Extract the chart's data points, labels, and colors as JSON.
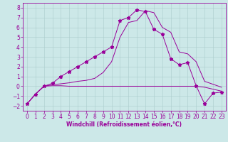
{
  "xlabel": "Windchill (Refroidissement éolien,°C)",
  "background_color": "#cce8e8",
  "line_color": "#990099",
  "grid_color": "#aacccc",
  "x_data": [
    0,
    1,
    2,
    3,
    4,
    5,
    6,
    7,
    8,
    9,
    10,
    11,
    12,
    13,
    14,
    15,
    16,
    17,
    18,
    19,
    20,
    21,
    22,
    23
  ],
  "star_y": [
    -1.8,
    -0.8,
    0.0,
    0.3,
    1.0,
    1.5,
    2.0,
    2.5,
    3.0,
    3.5,
    4.0,
    6.7,
    7.0,
    7.8,
    7.6,
    5.8,
    5.3,
    2.8,
    2.2,
    2.4,
    0.05,
    -1.8,
    -0.7,
    -0.6
  ],
  "smooth_y": [
    -1.8,
    -0.8,
    0.0,
    0.15,
    0.25,
    0.35,
    0.5,
    0.6,
    0.8,
    1.4,
    2.5,
    5.0,
    6.5,
    6.7,
    7.7,
    7.5,
    6.0,
    5.5,
    3.5,
    3.3,
    2.5,
    0.5,
    0.2,
    -0.1
  ],
  "flat_y": [
    -1.8,
    -0.8,
    0.0,
    0.05,
    0.05,
    0.0,
    0.0,
    0.0,
    0.0,
    0.0,
    0.0,
    0.0,
    0.0,
    0.0,
    0.0,
    0.0,
    0.0,
    0.0,
    0.0,
    0.0,
    0.0,
    -0.1,
    -0.3,
    -0.5
  ],
  "ylim": [
    -2.5,
    8.5
  ],
  "xlim": [
    -0.5,
    23.5
  ],
  "yticks": [
    -2,
    -1,
    0,
    1,
    2,
    3,
    4,
    5,
    6,
    7,
    8
  ],
  "xticks": [
    0,
    1,
    2,
    3,
    4,
    5,
    6,
    7,
    8,
    9,
    10,
    11,
    12,
    13,
    14,
    15,
    16,
    17,
    18,
    19,
    20,
    21,
    22,
    23
  ],
  "tick_fontsize": 5.5,
  "xlabel_fontsize": 5.5
}
